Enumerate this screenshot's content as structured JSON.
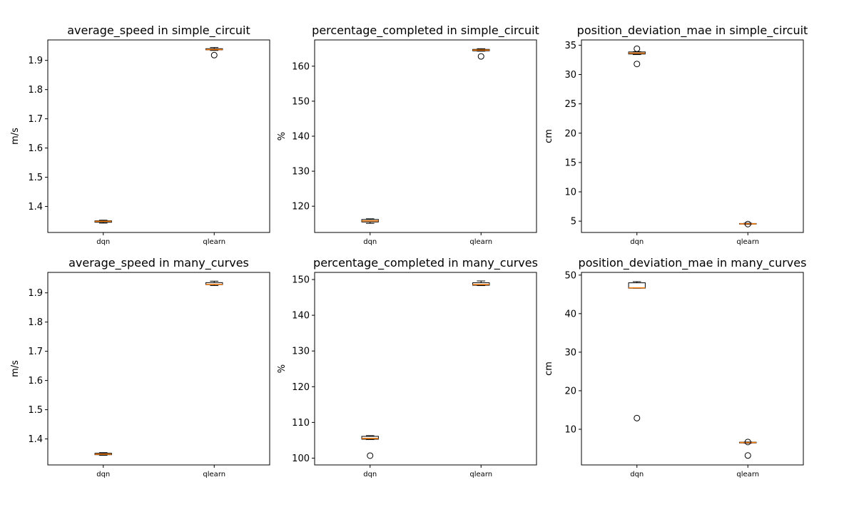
{
  "chart_data": [
    {
      "type": "box",
      "title": "average_speed in simple_circuit",
      "ylabel": "m/s",
      "categories": [
        "dqn",
        "qlearn"
      ],
      "ylim": [
        1.311,
        1.97
      ],
      "yticks": [
        1.4,
        1.5,
        1.6,
        1.7,
        1.8,
        1.9
      ],
      "yticklabels": [
        "1.4",
        "1.5",
        "1.6",
        "1.7",
        "1.8",
        "1.9"
      ],
      "boxes": [
        {
          "whislo": 1.343,
          "q1": 1.346,
          "med": 1.349,
          "q3": 1.351,
          "whishi": 1.353,
          "fliers": []
        },
        {
          "whislo": 1.934,
          "q1": 1.936,
          "med": 1.937,
          "q3": 1.94,
          "whishi": 1.944,
          "fliers": [
            1.918
          ]
        }
      ]
    },
    {
      "type": "box",
      "title": "percentage_completed in simple_circuit",
      "ylabel": "%",
      "categories": [
        "dqn",
        "qlearn"
      ],
      "ylim": [
        112.5,
        167.5
      ],
      "yticks": [
        120,
        130,
        140,
        150,
        160
      ],
      "yticklabels": [
        "120",
        "130",
        "140",
        "150",
        "160"
      ],
      "boxes": [
        {
          "whislo": 115.1,
          "q1": 115.5,
          "med": 115.8,
          "q3": 116.2,
          "whishi": 116.4,
          "fliers": []
        },
        {
          "whislo": 164.3,
          "q1": 164.4,
          "med": 164.6,
          "q3": 164.8,
          "whishi": 165.0,
          "fliers": [
            162.8
          ]
        }
      ]
    },
    {
      "type": "box",
      "title": "position_deviation_mae in simple_circuit",
      "ylabel": "cm",
      "categories": [
        "dqn",
        "qlearn"
      ],
      "ylim": [
        3.07,
        35.9
      ],
      "yticks": [
        5,
        10,
        15,
        20,
        25,
        30,
        35
      ],
      "yticklabels": [
        "5",
        "10",
        "15",
        "20",
        "25",
        "30",
        "35"
      ],
      "boxes": [
        {
          "whislo": 33.4,
          "q1": 33.5,
          "med": 33.65,
          "q3": 33.85,
          "whishi": 33.9,
          "fliers": [
            34.4,
            31.8
          ]
        },
        {
          "whislo": 4.45,
          "q1": 4.5,
          "med": 4.55,
          "q3": 4.6,
          "whishi": 4.65,
          "fliers": [
            4.5
          ]
        }
      ]
    },
    {
      "type": "box",
      "title": "average_speed in many_curves",
      "ylabel": "m/s",
      "categories": [
        "dqn",
        "qlearn"
      ],
      "ylim": [
        1.311,
        1.97
      ],
      "yticks": [
        1.4,
        1.5,
        1.6,
        1.7,
        1.8,
        1.9
      ],
      "yticklabels": [
        "1.4",
        "1.5",
        "1.6",
        "1.7",
        "1.8",
        "1.9"
      ],
      "boxes": [
        {
          "whislo": 1.344,
          "q1": 1.346,
          "med": 1.348,
          "q3": 1.351,
          "whishi": 1.353,
          "fliers": []
        },
        {
          "whislo": 1.925,
          "q1": 1.928,
          "med": 1.929,
          "q3": 1.935,
          "whishi": 1.94,
          "fliers": []
        }
      ]
    },
    {
      "type": "box",
      "title": "percentage_completed in many_curves",
      "ylabel": "%",
      "categories": [
        "dqn",
        "qlearn"
      ],
      "ylim": [
        98.1,
        152.0
      ],
      "yticks": [
        100,
        110,
        120,
        130,
        140,
        150
      ],
      "yticklabels": [
        "100",
        "110",
        "120",
        "130",
        "140",
        "150"
      ],
      "boxes": [
        {
          "whislo": 105.2,
          "q1": 105.3,
          "med": 105.5,
          "q3": 106.1,
          "whishi": 106.3,
          "fliers": [
            100.7
          ]
        },
        {
          "whislo": 148.3,
          "q1": 148.4,
          "med": 148.6,
          "q3": 149.1,
          "whishi": 149.6,
          "fliers": []
        }
      ]
    },
    {
      "type": "box",
      "title": "position_deviation_mae in many_curves",
      "ylabel": "cm",
      "categories": [
        "dqn",
        "qlearn"
      ],
      "ylim": [
        0.75,
        50.7
      ],
      "yticks": [
        10,
        20,
        30,
        40,
        50
      ],
      "yticklabels": [
        "10",
        "20",
        "30",
        "40",
        "50"
      ],
      "boxes": [
        {
          "whislo": 46.6,
          "q1": 46.6,
          "med": 46.7,
          "q3": 48.0,
          "whishi": 48.3,
          "fliers": [
            12.9
          ]
        },
        {
          "whislo": 6.4,
          "q1": 6.45,
          "med": 6.55,
          "q3": 6.65,
          "whishi": 6.7,
          "fliers": [
            6.7,
            3.2
          ]
        }
      ]
    }
  ],
  "style": {
    "box_color": "#000000",
    "median_color": "#ff7f0e",
    "axes_color": "#000000"
  }
}
